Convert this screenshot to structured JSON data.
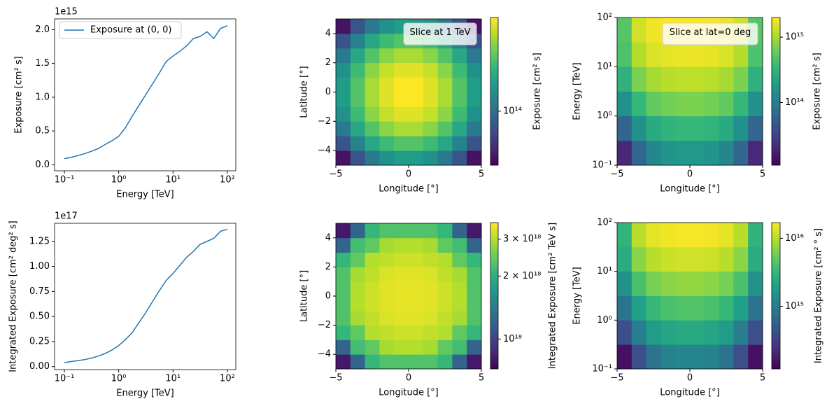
{
  "chart_data": [
    {
      "type": "line",
      "xscale": "log",
      "x": [
        0.1,
        0.1334,
        0.1778,
        0.2371,
        0.3162,
        0.4217,
        0.5623,
        0.7499,
        1,
        1.334,
        1.778,
        2.371,
        3.162,
        4.217,
        5.623,
        7.499,
        10,
        13.34,
        17.78,
        23.71,
        31.62,
        42.17,
        56.23,
        74.99,
        100
      ],
      "series": [
        {
          "name": "Exposure at (0, 0)",
          "color": "#1f77b4",
          "values": [
            0.09,
            0.11,
            0.135,
            0.165,
            0.2,
            0.24,
            0.3,
            0.355,
            0.42,
            0.55,
            0.72,
            0.88,
            1.04,
            1.2,
            1.36,
            1.53,
            1.61,
            1.68,
            1.76,
            1.87,
            1.9,
            1.97,
            1.87,
            2.02,
            2.06
          ]
        }
      ],
      "legend": "upper left",
      "xlabel": "Energy [TeV]",
      "ylabel": "Exposure [cm² s]",
      "y_offset": "1e15",
      "xlim": [
        0.066,
        143
      ],
      "ylim": [
        -0.09,
        2.16
      ],
      "xticks": [
        {
          "value": 0.1,
          "label": "10⁻¹"
        },
        {
          "value": 1,
          "label": "10⁰"
        },
        {
          "value": 10,
          "label": "10¹"
        },
        {
          "value": 100,
          "label": "10²"
        }
      ],
      "yticks": [
        {
          "value": 0,
          "label": "0.0"
        },
        0.5,
        {
          "value": 1,
          "label": "1.0"
        },
        1.5,
        {
          "value": 2,
          "label": "2.0"
        }
      ]
    },
    {
      "type": "heatmap",
      "colormap": "viridis",
      "annotation": "Slice at 1 TeV",
      "xlabel": "Longitude [°]",
      "ylabel": "Latitude [°]",
      "x": [
        -4.5,
        -3.5,
        -2.5,
        -1.5,
        -0.5,
        0.5,
        1.5,
        2.5,
        3.5,
        4.5
      ],
      "y": [
        -4.5,
        -3.5,
        -2.5,
        -1.5,
        -0.5,
        0.5,
        1.5,
        2.5,
        3.5,
        4.5
      ],
      "z": [
        [
          50000000000000.0,
          80000000000000.0,
          110000000000000.0,
          135000000000000.0,
          150000000000000.0,
          150000000000000.0,
          135000000000000.0,
          110000000000000.0,
          80000000000000.0,
          50000000000000.0
        ],
        [
          80000000000000.0,
          120000000000000.0,
          165000000000000.0,
          200000000000000.0,
          220000000000000.0,
          220000000000000.0,
          200000000000000.0,
          165000000000000.0,
          120000000000000.0,
          80000000000000.0
        ],
        [
          110000000000000.0,
          165000000000000.0,
          220000000000000.0,
          270000000000000.0,
          300000000000000.0,
          300000000000000.0,
          270000000000000.0,
          220000000000000.0,
          165000000000000.0,
          110000000000000.0
        ],
        [
          135000000000000.0,
          200000000000000.0,
          270000000000000.0,
          330000000000000.0,
          360000000000000.0,
          360000000000000.0,
          330000000000000.0,
          270000000000000.0,
          200000000000000.0,
          135000000000000.0
        ],
        [
          150000000000000.0,
          220000000000000.0,
          300000000000000.0,
          360000000000000.0,
          400000000000000.0,
          400000000000000.0,
          360000000000000.0,
          300000000000000.0,
          220000000000000.0,
          150000000000000.0
        ],
        [
          150000000000000.0,
          220000000000000.0,
          300000000000000.0,
          360000000000000.0,
          400000000000000.0,
          400000000000000.0,
          360000000000000.0,
          300000000000000.0,
          220000000000000.0,
          150000000000000.0
        ],
        [
          135000000000000.0,
          200000000000000.0,
          270000000000000.0,
          330000000000000.0,
          360000000000000.0,
          360000000000000.0,
          330000000000000.0,
          270000000000000.0,
          200000000000000.0,
          135000000000000.0
        ],
        [
          110000000000000.0,
          165000000000000.0,
          220000000000000.0,
          270000000000000.0,
          300000000000000.0,
          300000000000000.0,
          270000000000000.0,
          220000000000000.0,
          165000000000000.0,
          110000000000000.0
        ],
        [
          80000000000000.0,
          120000000000000.0,
          165000000000000.0,
          200000000000000.0,
          220000000000000.0,
          220000000000000.0,
          200000000000000.0,
          165000000000000.0,
          120000000000000.0,
          80000000000000.0
        ],
        [
          50000000000000.0,
          80000000000000.0,
          110000000000000.0,
          135000000000000.0,
          150000000000000.0,
          150000000000000.0,
          135000000000000.0,
          110000000000000.0,
          80000000000000.0,
          50000000000000.0
        ]
      ],
      "xlim": [
        -5,
        5
      ],
      "ylim": [
        -5,
        5
      ],
      "xticks": [
        {
          "value": -5,
          "label": "−5"
        },
        0,
        5
      ],
      "yticks": [
        {
          "value": -4,
          "label": "−4"
        },
        {
          "value": -2,
          "label": "−2"
        },
        0,
        2,
        4
      ],
      "colorbar": {
        "label": "Exposure [cm² s]",
        "scale": "log",
        "lim": [
          45000000000000.0,
          400000000000000.0
        ],
        "ticks": [
          {
            "value": 100000000000000.0,
            "label": "10¹⁴"
          }
        ]
      }
    },
    {
      "type": "heatmap",
      "colormap": "viridis",
      "annotation": "Slice at lat=0 deg",
      "yscale": "log",
      "xlabel": "Longitude [°]",
      "ylabel": "Energy [TeV]",
      "x": [
        -4.5,
        -3.5,
        -2.5,
        -1.5,
        -0.5,
        0.5,
        1.5,
        2.5,
        3.5,
        4.5
      ],
      "y": [
        0.1778,
        0.5623,
        1.778,
        5.623,
        17.78,
        56.23
      ],
      "z": [
        [
          20000000000000.0,
          60000000000000.0,
          120000000000000.0,
          160000000000000.0,
          180000000000000.0,
          180000000000000.0,
          160000000000000.0,
          120000000000000.0,
          60000000000000.0,
          20000000000000.0
        ],
        [
          60000000000000.0,
          150000000000000.0,
          260000000000000.0,
          320000000000000.0,
          350000000000000.0,
          350000000000000.0,
          320000000000000.0,
          260000000000000.0,
          150000000000000.0,
          60000000000000.0
        ],
        [
          150000000000000.0,
          350000000000000.0,
          550000000000000.0,
          650000000000000.0,
          700000000000000.0,
          700000000000000.0,
          650000000000000.0,
          550000000000000.0,
          350000000000000.0,
          150000000000000.0
        ],
        [
          300000000000000.0,
          700000000000000.0,
          1000000000000000.0,
          1150000000000000.0,
          1200000000000000.0,
          1200000000000000.0,
          1150000000000000.0,
          1000000000000000.0,
          700000000000000.0,
          300000000000000.0
        ],
        [
          450000000000000.0,
          1100000000000000.0,
          1500000000000000.0,
          1650000000000000.0,
          1700000000000000.0,
          1700000000000000.0,
          1650000000000000.0,
          1500000000000000.0,
          1100000000000000.0,
          450000000000000.0
        ],
        [
          500000000000000.0,
          1400000000000000.0,
          1800000000000000.0,
          1950000000000000.0,
          2000000000000000.0,
          2000000000000000.0,
          1950000000000000.0,
          1800000000000000.0,
          1400000000000000.0,
          500000000000000.0
        ]
      ],
      "xlim": [
        -5,
        5
      ],
      "ylim": [
        0.1,
        100
      ],
      "xticks": [
        {
          "value": -5,
          "label": "−5"
        },
        0,
        5
      ],
      "yticks": [
        {
          "value": 0.1,
          "label": "10⁻¹"
        },
        {
          "value": 1,
          "label": "10⁰"
        },
        {
          "value": 10,
          "label": "10¹"
        },
        {
          "value": 100,
          "label": "10²"
        }
      ],
      "colorbar": {
        "label": "Exposure [cm² s]",
        "scale": "log",
        "lim": [
          11000000000000.0,
          2000000000000000.0
        ],
        "ticks": [
          {
            "value": 100000000000000.0,
            "label": "10¹⁴"
          },
          {
            "value": 1000000000000000.0,
            "label": "10¹⁵"
          }
        ]
      }
    },
    {
      "type": "line",
      "xscale": "log",
      "x": [
        0.1,
        0.1334,
        0.1778,
        0.2371,
        0.3162,
        0.4217,
        0.5623,
        0.7499,
        1,
        1.334,
        1.778,
        2.371,
        3.162,
        4.217,
        5.623,
        7.499,
        10,
        13.34,
        17.78,
        23.71,
        31.62,
        42.17,
        56.23,
        74.99,
        100
      ],
      "series": [
        {
          "color": "#1f77b4",
          "values": [
            0.04,
            0.05,
            0.06,
            0.07,
            0.085,
            0.105,
            0.13,
            0.165,
            0.21,
            0.27,
            0.34,
            0.44,
            0.54,
            0.65,
            0.76,
            0.86,
            0.93,
            1.01,
            1.09,
            1.15,
            1.22,
            1.25,
            1.28,
            1.35,
            1.37
          ]
        }
      ],
      "xlabel": "Energy [TeV]",
      "ylabel": "Integrated Exposure [cm² deg² s]",
      "y_offset": "1e17",
      "xlim": [
        0.066,
        143
      ],
      "ylim": [
        -0.03,
        1.43
      ],
      "xticks": [
        {
          "value": 0.1,
          "label": "10⁻¹"
        },
        {
          "value": 1,
          "label": "10⁰"
        },
        {
          "value": 10,
          "label": "10¹"
        },
        {
          "value": 100,
          "label": "10²"
        }
      ],
      "yticks": [
        {
          "value": 0,
          "label": "0.00"
        },
        0.25,
        {
          "value": 0.5,
          "label": "0.50"
        },
        0.75,
        {
          "value": 1,
          "label": "1.00"
        },
        1.25
      ]
    },
    {
      "type": "heatmap",
      "colormap": "viridis",
      "xlabel": "Longitude [°]",
      "ylabel": "Latitude [°]",
      "x": [
        -4.5,
        -3.5,
        -2.5,
        -1.5,
        -0.5,
        0.5,
        1.5,
        2.5,
        3.5,
        4.5
      ],
      "y": [
        -4.5,
        -3.5,
        -2.5,
        -1.5,
        -0.5,
        0.5,
        1.5,
        2.5,
        3.5,
        4.5
      ],
      "z": [
        [
          8e+17,
          1.2e+18,
          2.1e+18,
          2.3e+18,
          2.3e+18,
          2.3e+18,
          2.3e+18,
          2.1e+18,
          1.2e+18,
          8e+17
        ],
        [
          1.2e+18,
          2.2e+18,
          2.4e+18,
          2.9e+18,
          3e+18,
          3e+18,
          2.9e+18,
          2.4e+18,
          2.2e+18,
          1.2e+18
        ],
        [
          2.1e+18,
          2.4e+18,
          3e+18,
          3.1e+18,
          3.2e+18,
          3.2e+18,
          3.1e+18,
          3e+18,
          2.4e+18,
          2.1e+18
        ],
        [
          2.3e+18,
          2.9e+18,
          3.1e+18,
          3.3e+18,
          3.35e+18,
          3.35e+18,
          3.3e+18,
          3.1e+18,
          2.9e+18,
          2.3e+18
        ],
        [
          2.3e+18,
          3e+18,
          3.2e+18,
          3.35e+18,
          3.4e+18,
          3.4e+18,
          3.35e+18,
          3.2e+18,
          3e+18,
          2.3e+18
        ],
        [
          2.3e+18,
          3e+18,
          3.2e+18,
          3.35e+18,
          3.4e+18,
          3.4e+18,
          3.35e+18,
          3.2e+18,
          3e+18,
          2.3e+18
        ],
        [
          2.3e+18,
          2.9e+18,
          3.1e+18,
          3.3e+18,
          3.35e+18,
          3.35e+18,
          3.3e+18,
          3.1e+18,
          2.9e+18,
          2.3e+18
        ],
        [
          2.1e+18,
          2.4e+18,
          3e+18,
          3.1e+18,
          3.2e+18,
          3.2e+18,
          3.1e+18,
          3e+18,
          2.4e+18,
          2.1e+18
        ],
        [
          1.2e+18,
          2.2e+18,
          2.4e+18,
          2.9e+18,
          3e+18,
          3e+18,
          2.9e+18,
          2.4e+18,
          2.2e+18,
          1.2e+18
        ],
        [
          8e+17,
          1.2e+18,
          2.1e+18,
          2.3e+18,
          2.3e+18,
          2.3e+18,
          2.3e+18,
          2.1e+18,
          1.2e+18,
          8e+17
        ]
      ],
      "xlim": [
        -5,
        5
      ],
      "ylim": [
        -5,
        5
      ],
      "xticks": [
        {
          "value": -5,
          "label": "−5"
        },
        0,
        5
      ],
      "yticks": [
        {
          "value": -4,
          "label": "−4"
        },
        {
          "value": -2,
          "label": "−2"
        },
        0,
        2,
        4
      ],
      "colorbar": {
        "label": "Integrated Exposure [cm² TeV s]",
        "scale": "log",
        "lim": [
          7.2e+17,
          3.6e+18
        ],
        "ticks": [
          {
            "value": 1e+18,
            "label": "10¹⁸"
          },
          {
            "value": 2e+18,
            "label": "2 × 10¹⁸"
          },
          {
            "value": 3e+18,
            "label": "3 × 10¹⁸"
          }
        ]
      }
    },
    {
      "type": "heatmap",
      "colormap": "viridis",
      "yscale": "log",
      "xlabel": "Longitude [°]",
      "ylabel": "Energy [TeV]",
      "x": [
        -4.5,
        -3.5,
        -2.5,
        -1.5,
        -0.5,
        0.5,
        1.5,
        2.5,
        3.5,
        4.5
      ],
      "y": [
        0.1778,
        0.5623,
        1.778,
        5.623,
        17.78,
        56.23
      ],
      "z": [
        [
          150000000000000.0,
          400000000000000.0,
          800000000000000.0,
          1100000000000000.0,
          1200000000000000.0,
          1200000000000000.0,
          1100000000000000.0,
          800000000000000.0,
          400000000000000.0,
          150000000000000.0
        ],
        [
          400000000000000.0,
          1000000000000000.0,
          1800000000000000.0,
          2200000000000000.0,
          2400000000000000.0,
          2400000000000000.0,
          2200000000000000.0,
          1800000000000000.0,
          1000000000000000.0,
          400000000000000.0
        ],
        [
          800000000000000.0,
          2000000000000000.0,
          3300000000000000.0,
          4000000000000000.0,
          4300000000000000.0,
          4300000000000000.0,
          4000000000000000.0,
          3300000000000000.0,
          2000000000000000.0,
          800000000000000.0
        ],
        [
          1500000000000000.0,
          4000000000000000.0,
          6000000000000000.0,
          7000000000000000.0,
          7500000000000000.0,
          7500000000000000.0,
          7000000000000000.0,
          6000000000000000.0,
          4000000000000000.0,
          1500000000000000.0
        ],
        [
          2500000000000000.0,
          7000000000000000.0,
          1e+16,
          1.15e+16,
          1.2e+16,
          1.2e+16,
          1.15e+16,
          1e+16,
          7000000000000000.0,
          2500000000000000.0
        ],
        [
          3000000000000000.0,
          1e+16,
          1.4e+16,
          1.55e+16,
          1.6e+16,
          1.6e+16,
          1.55e+16,
          1.4e+16,
          1e+16,
          3000000000000000.0
        ]
      ],
      "xlim": [
        -5,
        5
      ],
      "ylim": [
        0.1,
        100
      ],
      "xticks": [
        {
          "value": -5,
          "label": "−5"
        },
        0,
        5
      ],
      "yticks": [
        {
          "value": 0.1,
          "label": "10⁻¹"
        },
        {
          "value": 1,
          "label": "10⁰"
        },
        {
          "value": 10,
          "label": "10¹"
        },
        {
          "value": 100,
          "label": "10²"
        }
      ],
      "colorbar": {
        "label": "Integrated Exposure [cm² ° s]",
        "scale": "log",
        "lim": [
          120000000000000.0,
          1.7e+16
        ],
        "ticks": [
          {
            "value": 1000000000000000.0,
            "label": "10¹⁵"
          },
          {
            "value": 1e+16,
            "label": "10¹⁶"
          }
        ]
      }
    }
  ]
}
